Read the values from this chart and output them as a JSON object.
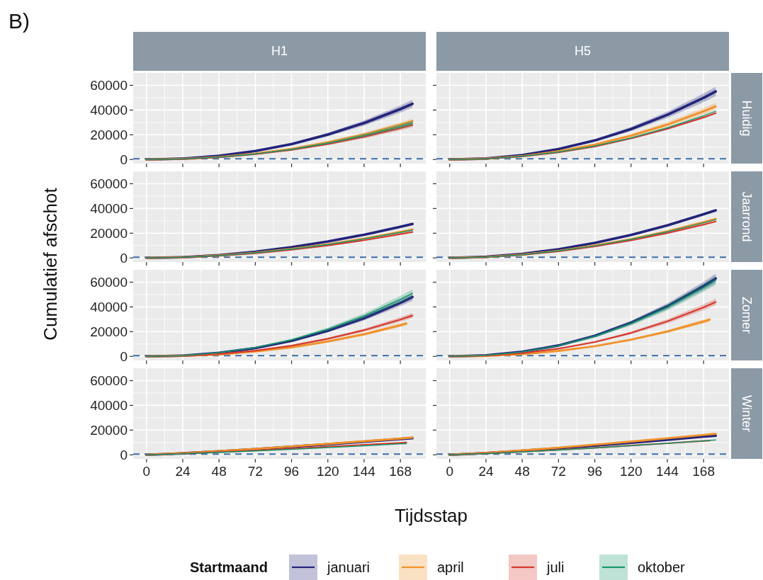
{
  "chart_data": [
    {
      "type": "line",
      "title": "H1",
      "annotations": [
        "B)"
      ],
      "x": [
        0,
        24,
        48,
        72,
        96,
        120,
        144,
        168,
        176
      ],
      "xlim": [
        -8.8,
        184.8
      ],
      "ylim": [
        -3300,
        70000
      ],
      "xticks": [
        0,
        24,
        48,
        72,
        96,
        120,
        144,
        168
      ],
      "yticks": [
        0,
        20000,
        40000,
        60000
      ],
      "grid": true,
      "tick_labels": "y",
      "ref_lines": [
        {
          "axis": "y",
          "value": 500,
          "color": "#3b6ba5",
          "line_style": "dashed"
        }
      ],
      "series": [
        {
          "color": "#23247a",
          "values": [
            0,
            700,
            3000,
            6900,
            12500,
            20200,
            29500,
            40800,
            45000
          ],
          "lower": [
            0,
            600,
            2700,
            6400,
            11700,
            18800,
            27400,
            37900,
            41900
          ],
          "upper": [
            0,
            700,
            3200,
            7400,
            13400,
            21600,
            31600,
            43700,
            48200
          ]
        },
        {
          "color": "#f0922a",
          "values": [
            0,
            500,
            2000,
            4700,
            8600,
            13900,
            20300,
            28100,
            31000
          ],
          "lower": [
            0,
            400,
            1900,
            4400,
            8000,
            12900,
            18900,
            26100,
            28800
          ],
          "upper": [
            0,
            500,
            2200,
            5100,
            9300,
            14900,
            21700,
            30100,
            33200
          ]
        },
        {
          "color": "#d53a2f",
          "values": [
            0,
            400,
            1800,
            4300,
            7800,
            12500,
            18400,
            25400,
            28000
          ],
          "lower": [
            0,
            400,
            1700,
            4000,
            7300,
            11600,
            17100,
            23600,
            26000
          ],
          "upper": [
            0,
            500,
            2000,
            4600,
            8400,
            13400,
            19700,
            27200,
            30000
          ]
        },
        {
          "color": "#17986c",
          "values": [
            0,
            500,
            1900,
            4500,
            8200,
            13200,
            19400,
            26800,
            29500
          ],
          "lower": [
            0,
            400,
            1800,
            4200,
            7600,
            12300,
            18000,
            24900,
            27400
          ],
          "upper": [
            0,
            500,
            2100,
            4800,
            8800,
            14100,
            20800,
            28700,
            31600
          ]
        }
      ]
    },
    {
      "type": "line",
      "title": "H5",
      "y2label": "Huidig",
      "x": [
        0,
        24,
        48,
        72,
        96,
        120,
        144,
        168,
        176
      ],
      "xlim": [
        -8.8,
        184.8
      ],
      "ylim": [
        -3300,
        70000
      ],
      "xticks": [
        0,
        24,
        48,
        72,
        96,
        120,
        144,
        168
      ],
      "yticks": [
        0,
        20000,
        40000,
        60000
      ],
      "grid": true,
      "tick_labels": false,
      "ref_lines": [
        {
          "axis": "y",
          "value": 500,
          "color": "#3b6ba5",
          "line_style": "dashed"
        }
      ],
      "series": [
        {
          "color": "#23247a",
          "values": [
            0,
            800,
            3600,
            8400,
            15400,
            24600,
            36100,
            49900,
            55000
          ],
          "lower": [
            0,
            800,
            3400,
            7800,
            14300,
            22900,
            33600,
            46400,
            51200
          ],
          "upper": [
            0,
            900,
            3900,
            9000,
            16400,
            26300,
            38600,
            53400,
            58900
          ]
        },
        {
          "color": "#f0922a",
          "values": [
            0,
            700,
            2800,
            6600,
            12000,
            19300,
            28200,
            39000,
            43000
          ],
          "lower": [
            0,
            600,
            2600,
            6100,
            11200,
            17900,
            26200,
            36300,
            40000
          ],
          "upper": [
            0,
            700,
            3000,
            7000,
            12800,
            20600,
            30200,
            41700,
            46000
          ]
        },
        {
          "color": "#d53a2f",
          "values": [
            0,
            600,
            2500,
            5800,
            10500,
            17000,
            24800,
            34000,
            37500
          ]
        },
        {
          "color": "#17986c",
          "values": [
            0,
            600,
            2600,
            6000,
            10900,
            17500,
            25600,
            35400,
            39000
          ]
        }
      ]
    },
    {
      "type": "line",
      "ylabel": "Cumulatief afschot",
      "x": [
        0,
        24,
        48,
        72,
        96,
        120,
        144,
        168,
        176
      ],
      "xlim": [
        -8.8,
        184.8
      ],
      "ylim": [
        -3300,
        70000
      ],
      "xticks": [
        0,
        24,
        48,
        72,
        96,
        120,
        144,
        168
      ],
      "yticks": [
        0,
        20000,
        40000,
        60000
      ],
      "grid": true,
      "tick_labels": "y",
      "ref_lines": [
        {
          "axis": "y",
          "value": 500,
          "color": "#3b6ba5",
          "line_style": "dashed"
        }
      ],
      "series": [
        {
          "color": "#23247a",
          "values": [
            0,
            600,
            2300,
            5000,
            8700,
            13300,
            18800,
            25200,
            27500
          ]
        },
        {
          "color": "#f0922a",
          "values": [
            0,
            500,
            2000,
            4200,
            7300,
            11100,
            15700,
            21100,
            23000
          ]
        },
        {
          "color": "#d53a2f",
          "values": [
            0,
            500,
            1800,
            3800,
            6600,
            10100,
            14300,
            19200,
            21000
          ]
        },
        {
          "color": "#17986c",
          "values": [
            0,
            500,
            1900,
            4100,
            7100,
            10900,
            15400,
            20600,
            22500
          ]
        }
      ]
    },
    {
      "type": "line",
      "y2label": "Jaarrond",
      "x": [
        0,
        24,
        48,
        72,
        96,
        120,
        144,
        168,
        176
      ],
      "xlim": [
        -8.8,
        184.8
      ],
      "ylim": [
        -3300,
        70000
      ],
      "xticks": [
        0,
        24,
        48,
        72,
        96,
        120,
        144,
        168
      ],
      "yticks": [
        0,
        20000,
        40000,
        60000
      ],
      "grid": true,
      "tick_labels": false,
      "ref_lines": [
        {
          "axis": "y",
          "value": 500,
          "color": "#3b6ba5",
          "line_style": "dashed"
        }
      ],
      "series": [
        {
          "color": "#23247a",
          "values": [
            0,
            900,
            3300,
            7000,
            12200,
            18600,
            26300,
            35300,
            38500
          ]
        },
        {
          "color": "#f0922a",
          "values": [
            0,
            700,
            2700,
            5800,
            10000,
            15200,
            21500,
            28900,
            31500
          ]
        },
        {
          "color": "#d53a2f",
          "values": [
            0,
            700,
            2500,
            5400,
            9300,
            14200,
            20100,
            27000,
            29500
          ]
        },
        {
          "color": "#17986c",
          "values": [
            0,
            700,
            2600,
            5700,
            9800,
            15000,
            21200,
            28400,
            31000
          ]
        }
      ]
    },
    {
      "type": "line",
      "x": [
        0,
        24,
        48,
        72,
        96,
        120,
        144,
        168,
        176
      ],
      "xlim": [
        -8.8,
        184.8
      ],
      "ylim": [
        -3300,
        70000
      ],
      "xticks": [
        0,
        24,
        48,
        72,
        96,
        120,
        144,
        168
      ],
      "yticks": [
        0,
        20000,
        40000,
        60000
      ],
      "grid": true,
      "tick_labels": "y",
      "ref_lines": [
        {
          "axis": "y",
          "value": 500,
          "color": "#3b6ba5",
          "line_style": "dashed"
        }
      ],
      "series": [
        {
          "color": "#23247a",
          "values": [
            0,
            600,
            2800,
            6700,
            12600,
            20700,
            30900,
            43300,
            48000
          ],
          "lower": [
            0,
            600,
            2600,
            6300,
            11800,
            19500,
            29000,
            40700,
            45100
          ],
          "upper": [
            0,
            600,
            3000,
            7100,
            13400,
            21900,
            32800,
            45900,
            50900
          ]
        },
        {
          "color": "#f0922a",
          "x": [
            0,
            24,
            48,
            72,
            96,
            120,
            144,
            168,
            172
          ],
          "values": [
            0,
            400,
            1600,
            3900,
            7300,
            12000,
            17900,
            25200,
            26500
          ],
          "lower": [
            0,
            300,
            1500,
            3700,
            6900,
            11300,
            16800,
            23700,
            24900
          ],
          "upper": [
            0,
            400,
            1700,
            4100,
            7800,
            12700,
            19000,
            26700,
            28100
          ]
        },
        {
          "color": "#d53a2f",
          "values": [
            0,
            400,
            1900,
            4600,
            8700,
            14200,
            21200,
            29800,
            33000
          ],
          "lower": [
            0,
            400,
            1800,
            4300,
            8200,
            13300,
            19900,
            28000,
            31000
          ],
          "upper": [
            0,
            400,
            2000,
            4900,
            9200,
            15100,
            22500,
            31600,
            35000
          ]
        },
        {
          "color": "#17986c",
          "values": [
            0,
            600,
            3000,
            7100,
            13400,
            22000,
            32800,
            46100,
            51000
          ],
          "lower": [
            0,
            600,
            2800,
            6700,
            12600,
            20700,
            30800,
            43300,
            47900
          ],
          "upper": [
            0,
            700,
            3100,
            7600,
            14200,
            23300,
            34800,
            48900,
            54100
          ]
        }
      ]
    },
    {
      "type": "line",
      "y2label": "Zomer",
      "x": [
        0,
        24,
        48,
        72,
        96,
        120,
        144,
        168,
        176
      ],
      "xlim": [
        -8.8,
        184.8
      ],
      "ylim": [
        -3300,
        70000
      ],
      "xticks": [
        0,
        24,
        48,
        72,
        96,
        120,
        144,
        168
      ],
      "yticks": [
        0,
        20000,
        40000,
        60000
      ],
      "grid": true,
      "tick_labels": false,
      "ref_lines": [
        {
          "axis": "y",
          "value": 500,
          "color": "#3b6ba5",
          "line_style": "dashed"
        }
      ],
      "series": [
        {
          "color": "#23247a",
          "values": [
            0,
            800,
            3700,
            8800,
            16600,
            27200,
            40500,
            56900,
            63000
          ],
          "lower": [
            0,
            700,
            3400,
            8300,
            15600,
            25600,
            38100,
            53500,
            59200
          ],
          "upper": [
            0,
            800,
            3900,
            9400,
            17600,
            28800,
            42900,
            60300,
            66800
          ]
        },
        {
          "color": "#f0922a",
          "x": [
            0,
            24,
            48,
            72,
            96,
            120,
            144,
            168,
            172
          ],
          "values": [
            0,
            400,
            1800,
            4400,
            8200,
            13500,
            20100,
            28200,
            29700
          ],
          "lower": [
            0,
            400,
            1700,
            4100,
            7700,
            12700,
            18900,
            26500,
            27900
          ],
          "upper": [
            0,
            400,
            1900,
            4600,
            8700,
            14300,
            21300,
            29900,
            31500
          ]
        },
        {
          "color": "#d53a2f",
          "values": [
            0,
            600,
            2600,
            6200,
            11600,
            19000,
            28300,
            39700,
            44000
          ],
          "lower": [
            0,
            500,
            2400,
            5800,
            10900,
            17900,
            26600,
            37300,
            41400
          ],
          "upper": [
            0,
            600,
            2700,
            6500,
            12300,
            20100,
            30000,
            42100,
            46600
          ]
        },
        {
          "color": "#17986c",
          "values": [
            0,
            800,
            3600,
            8600,
            16200,
            26500,
            39500,
            55500,
            61500
          ],
          "lower": [
            0,
            700,
            3400,
            8100,
            15200,
            24900,
            37100,
            52200,
            57800
          ],
          "upper": [
            0,
            800,
            3800,
            9100,
            17200,
            28100,
            41900,
            58800,
            65200
          ]
        }
      ]
    },
    {
      "type": "line",
      "xlabel": "Tijdsstap",
      "x": [
        0,
        24,
        48,
        72,
        96,
        120,
        144,
        168,
        176
      ],
      "xlim": [
        -8.8,
        184.8
      ],
      "ylim": [
        -3300,
        70000
      ],
      "xticks": [
        0,
        24,
        48,
        72,
        96,
        120,
        144,
        168
      ],
      "yticks": [
        0,
        20000,
        40000,
        60000
      ],
      "grid": true,
      "ref_lines": [
        {
          "axis": "y",
          "value": 500,
          "color": "#3b6ba5",
          "line_style": "dashed"
        }
      ],
      "series": [
        {
          "color": "#23247a",
          "values": [
            0,
            1200,
            2900,
            4600,
            6500,
            8500,
            10600,
            12800,
            13500
          ]
        },
        {
          "color": "#f0922a",
          "values": [
            0,
            1300,
            3000,
            4800,
            6800,
            8900,
            11000,
            13200,
            14000
          ]
        },
        {
          "color": "#d53a2f",
          "x": [
            0,
            24,
            48,
            72,
            96,
            120,
            144,
            168,
            172
          ],
          "values": [
            0,
            900,
            2200,
            3500,
            5000,
            6500,
            8100,
            9700,
            10000
          ]
        },
        {
          "color": "#17986c",
          "x": [
            0,
            24,
            48,
            72,
            96,
            120,
            144,
            168,
            172
          ],
          "values": [
            0,
            800,
            2000,
            3200,
            4500,
            5900,
            7300,
            8800,
            9000
          ]
        }
      ]
    },
    {
      "type": "line",
      "y2label": "Winter",
      "legend": "bottom",
      "legend_title": "Startmaand",
      "x": [
        0,
        24,
        48,
        72,
        96,
        120,
        144,
        168,
        176
      ],
      "xlim": [
        -8.8,
        184.8
      ],
      "ylim": [
        -3300,
        70000
      ],
      "xticks": [
        0,
        24,
        48,
        72,
        96,
        120,
        144,
        168
      ],
      "yticks": [
        0,
        20000,
        40000,
        60000
      ],
      "grid": true,
      "tick_labels": "x",
      "ref_lines": [
        {
          "axis": "y",
          "value": 500,
          "color": "#3b6ba5",
          "line_style": "dashed"
        }
      ],
      "series": [
        {
          "name": "januari",
          "color": "#23247a",
          "values": [
            0,
            1400,
            3300,
            5300,
            7500,
            9800,
            12200,
            14700,
            15500
          ]
        },
        {
          "name": "april",
          "color": "#f0922a",
          "values": [
            0,
            1600,
            3600,
            5800,
            8200,
            10700,
            13400,
            16100,
            17000
          ]
        },
        {
          "name": "juli",
          "color": "#d53a2f",
          "x": [
            0,
            24,
            48,
            72,
            96,
            120,
            144,
            168,
            172
          ],
          "values": [
            0,
            1100,
            2500,
            4000,
            5700,
            7500,
            9300,
            11200,
            11500
          ]
        },
        {
          "name": "oktober",
          "color": "#17986c",
          "values": [
            0,
            1000,
            2400,
            3900,
            5600,
            7400,
            9300,
            11300,
            12000
          ]
        }
      ]
    }
  ]
}
